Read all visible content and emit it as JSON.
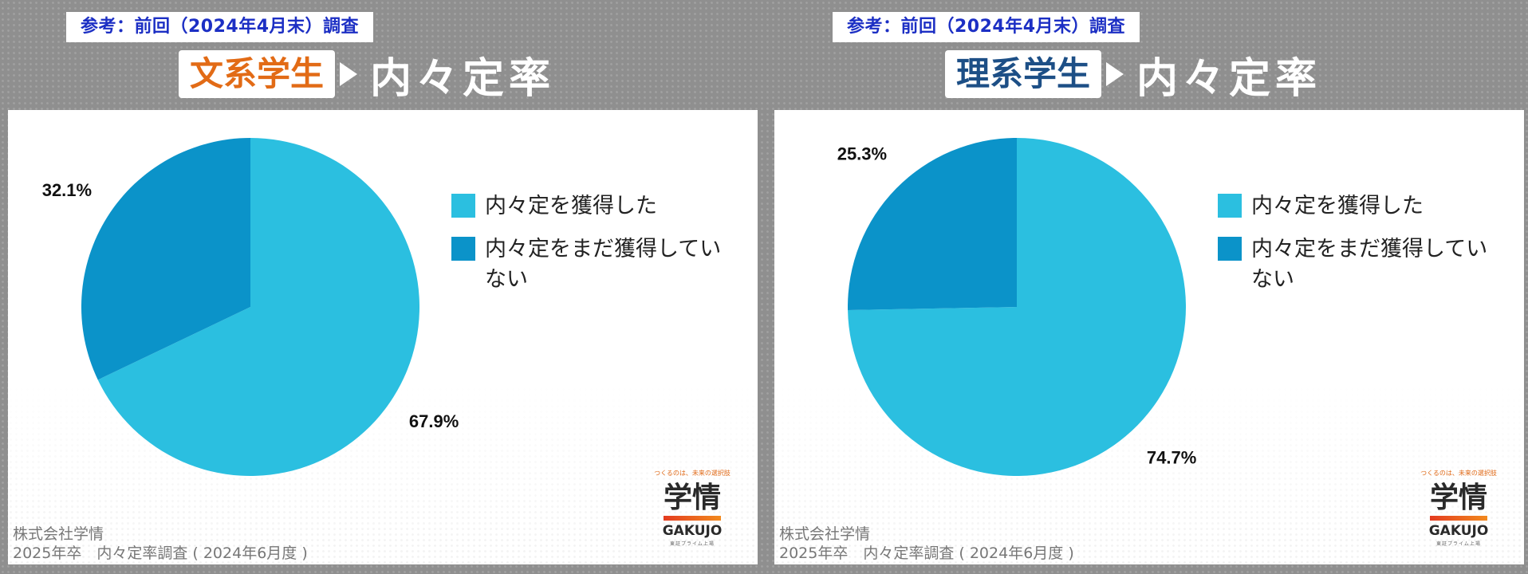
{
  "panels": [
    {
      "reference_tag": "参考：前回（2024年4月末）調査",
      "group_label": "文系学生",
      "group_color": "#e26b16",
      "title": "内々定率",
      "chart_data": {
        "type": "pie",
        "slices": [
          {
            "label": "内々定を獲得した",
            "value": 67.9,
            "display": "67.9%",
            "color": "#2bbfe0"
          },
          {
            "label": "内々定をまだ獲得していない",
            "value": 32.1,
            "display": "32.1%",
            "color": "#0b93c9"
          }
        ],
        "legend_position": "right"
      },
      "legend": [
        "内々定を獲得した",
        "内々定をまだ獲得していない"
      ],
      "footer": {
        "line1": "株式会社学情",
        "line2": "2025年卒　内々定率調査 ( 2024年6月度 )"
      },
      "logo": {
        "tagline": "つくるのは、未来の選択肢",
        "mark": "学情",
        "name": "GAKUJO",
        "sub": "東証プライム上場"
      }
    },
    {
      "reference_tag": "参考：前回（2024年4月末）調査",
      "group_label": "理系学生",
      "group_color": "#1d4f86",
      "title": "内々定率",
      "chart_data": {
        "type": "pie",
        "slices": [
          {
            "label": "内々定を獲得した",
            "value": 74.7,
            "display": "74.7%",
            "color": "#2bbfe0"
          },
          {
            "label": "内々定をまだ獲得していない",
            "value": 25.3,
            "display": "25.3%",
            "color": "#0b93c9"
          }
        ],
        "legend_position": "right"
      },
      "legend": [
        "内々定を獲得した",
        "内々定をまだ獲得していない"
      ],
      "footer": {
        "line1": "株式会社学情",
        "line2": "2025年卒　内々定率調査 ( 2024年6月度 )"
      },
      "logo": {
        "tagline": "つくるのは、未来の選択肢",
        "mark": "学情",
        "name": "GAKUJO",
        "sub": "東証プライム上場"
      }
    }
  ]
}
